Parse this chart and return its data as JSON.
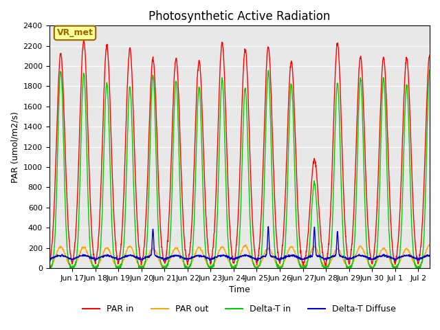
{
  "title": "Photosynthetic Active Radiation",
  "ylabel": "PAR (umol/m2/s)",
  "xlabel": "Time",
  "ylim": [
    0,
    2400
  ],
  "yticks": [
    0,
    200,
    400,
    600,
    800,
    1000,
    1200,
    1400,
    1600,
    1800,
    2000,
    2200,
    2400
  ],
  "bg_color": "#e8e8e8",
  "legend_labels": [
    "PAR in",
    "PAR out",
    "Delta-T in",
    "Delta-T Diffuse"
  ],
  "legend_colors": [
    "#ff0000",
    "#ffa500",
    "#00cc00",
    "#0000cc"
  ],
  "vr_met_label": "VR_met",
  "vr_met_box_color": "#ffff99",
  "vr_met_edge_color": "#996600",
  "xtick_labels": [
    "Jun 17",
    "Jun 18",
    "Jun 19",
    "Jun 20",
    "Jun 21",
    "Jun 22",
    "Jun 23",
    "Jun 24",
    "Jun 25",
    "Jun 26",
    "Jun 27",
    "Jun 28",
    "Jun 29",
    "Jun 30",
    "Jul 1",
    "Jul 2"
  ],
  "xtick_positions": [
    1,
    2,
    3,
    4,
    5,
    6,
    7,
    8,
    9,
    10,
    11,
    12,
    13,
    14,
    15,
    16
  ],
  "xlim": [
    0,
    16.5
  ],
  "total_days": 16.5,
  "n_points": 1584,
  "figsize": [
    6.4,
    4.8
  ],
  "dpi": 100
}
